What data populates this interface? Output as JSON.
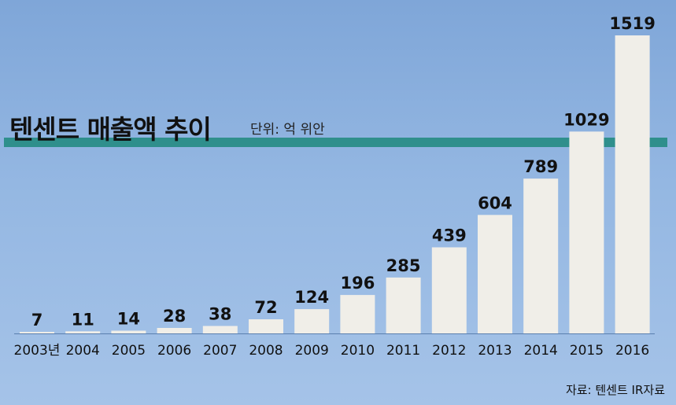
{
  "chart_data": {
    "type": "bar",
    "title": "텐센트 매출액 추이",
    "unit_label": "단위: 억 위안",
    "source": "자료: 텐센트 IR자료",
    "categories": [
      "2003년",
      "2004",
      "2005",
      "2006",
      "2007",
      "2008",
      "2009",
      "2010",
      "2011",
      "2012",
      "2013",
      "2014",
      "2015",
      "2016"
    ],
    "values": [
      7,
      11,
      14,
      28,
      38,
      72,
      124,
      196,
      285,
      439,
      604,
      789,
      1029,
      1519
    ],
    "ylim": [
      0,
      1519
    ],
    "colors": {
      "bar": "#f0eee8",
      "band": "#2f8f8c",
      "text": "#111111"
    }
  }
}
